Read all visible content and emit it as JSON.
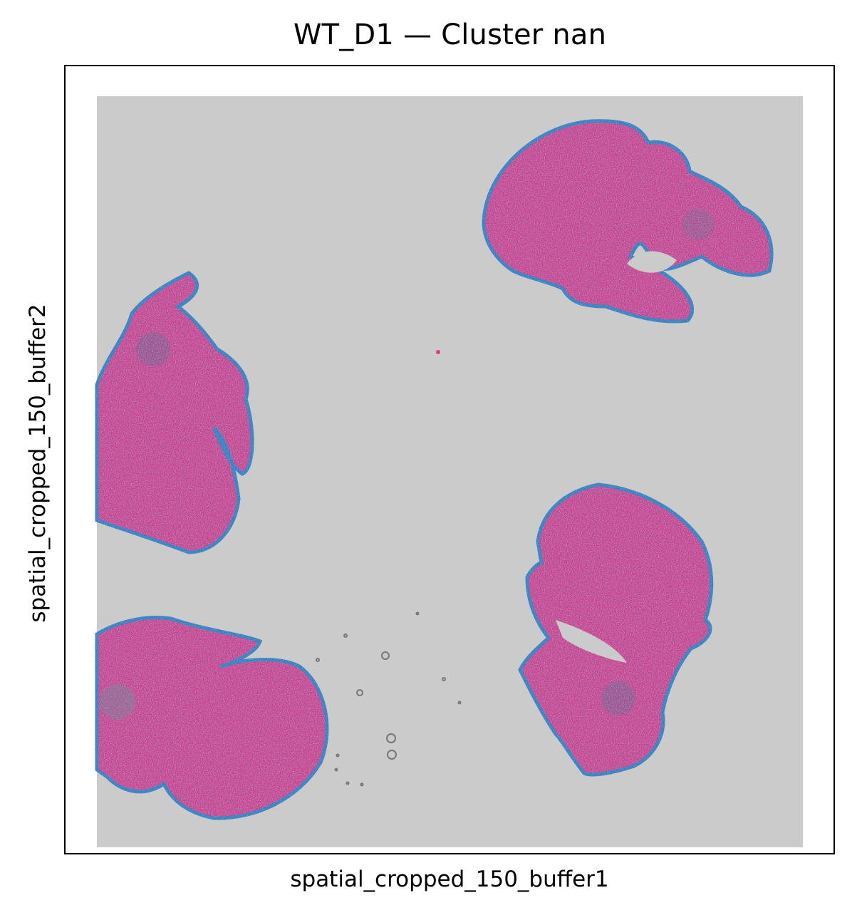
{
  "chart_data": {
    "type": "scatter",
    "title": "WT_D1 — Cluster nan",
    "xlabel": "spatial_cropped_150_buffer1",
    "ylabel": "spatial_cropped_150_buffer2",
    "xticks": [],
    "yticks": [],
    "grid": false,
    "legend": "none",
    "background_image": "H&E tissue section",
    "point_color": "#1f77b4",
    "tissue_color": "#d0408f",
    "slide_color": "#cbcbcb",
    "tissue_sections": 4
  }
}
